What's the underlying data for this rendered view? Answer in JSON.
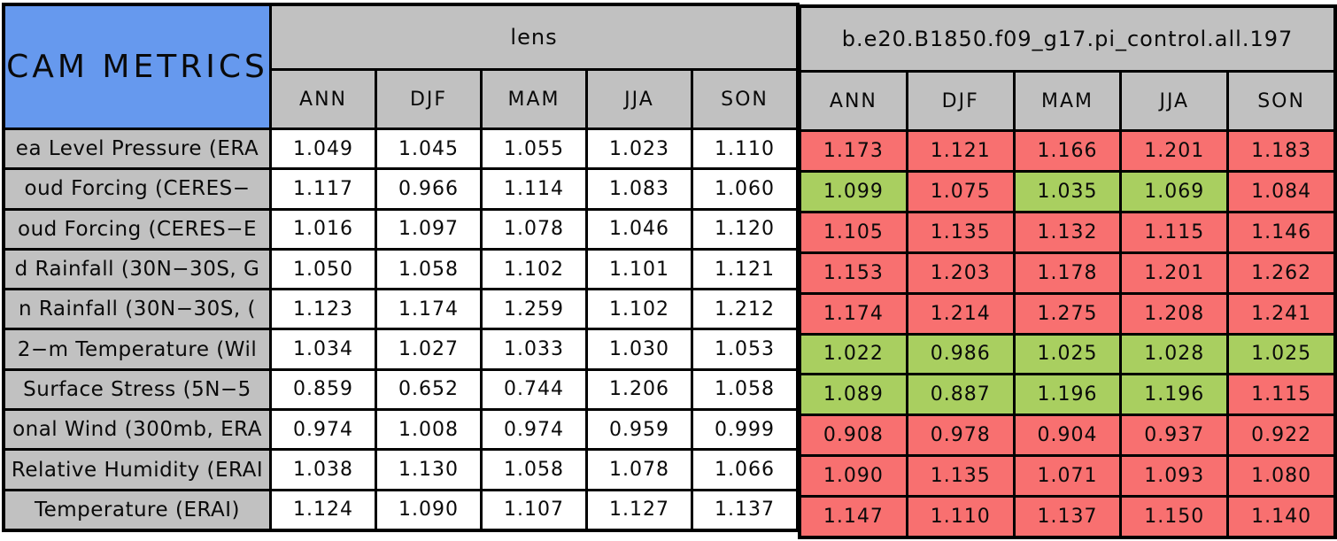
{
  "colors": {
    "title_blue": "#6699ee",
    "header_gray": "#c1c1c1",
    "cell_white": "#ffffff",
    "cell_red": "#f87070",
    "cell_green": "#a9cf60",
    "border_black": "#000000"
  },
  "chart_data": {
    "type": "table",
    "title": "CAM METRICS",
    "column_groups": [
      "lens",
      "b.e20.B1850.f09_g17.pi_control.all.197"
    ],
    "seasons": [
      "ANN",
      "DJF",
      "MAM",
      "JJA",
      "SON"
    ],
    "rows": [
      {
        "label": "ea Level Pressure (ERA",
        "lens_values": [
          "1.049",
          "1.045",
          "1.055",
          "1.023",
          "1.110"
        ],
        "case_values": [
          "1.173",
          "1.121",
          "1.166",
          "1.201",
          "1.183"
        ],
        "case_colors": [
          "red",
          "red",
          "red",
          "red",
          "red"
        ]
      },
      {
        "label": "oud Forcing (CERES−",
        "lens_values": [
          "1.117",
          "0.966",
          "1.114",
          "1.083",
          "1.060"
        ],
        "case_values": [
          "1.099",
          "1.075",
          "1.035",
          "1.069",
          "1.084"
        ],
        "case_colors": [
          "green",
          "red",
          "green",
          "green",
          "red"
        ]
      },
      {
        "label": "oud Forcing (CERES−E",
        "lens_values": [
          "1.016",
          "1.097",
          "1.078",
          "1.046",
          "1.120"
        ],
        "case_values": [
          "1.105",
          "1.135",
          "1.132",
          "1.115",
          "1.146"
        ],
        "case_colors": [
          "red",
          "red",
          "red",
          "red",
          "red"
        ]
      },
      {
        "label": "d Rainfall (30N−30S, G",
        "lens_values": [
          "1.050",
          "1.058",
          "1.102",
          "1.101",
          "1.121"
        ],
        "case_values": [
          "1.153",
          "1.203",
          "1.178",
          "1.201",
          "1.262"
        ],
        "case_colors": [
          "red",
          "red",
          "red",
          "red",
          "red"
        ]
      },
      {
        "label": "n Rainfall (30N−30S, (",
        "lens_values": [
          "1.123",
          "1.174",
          "1.259",
          "1.102",
          "1.212"
        ],
        "case_values": [
          "1.174",
          "1.214",
          "1.275",
          "1.208",
          "1.241"
        ],
        "case_colors": [
          "red",
          "red",
          "red",
          "red",
          "red"
        ]
      },
      {
        "label": "2−m Temperature (Wil",
        "lens_values": [
          "1.034",
          "1.027",
          "1.033",
          "1.030",
          "1.053"
        ],
        "case_values": [
          "1.022",
          "0.986",
          "1.025",
          "1.028",
          "1.025"
        ],
        "case_colors": [
          "green",
          "green",
          "green",
          "green",
          "green"
        ]
      },
      {
        "label": "Surface Stress (5N−5",
        "lens_values": [
          "0.859",
          "0.652",
          "0.744",
          "1.206",
          "1.058"
        ],
        "case_values": [
          "1.089",
          "0.887",
          "1.196",
          "1.196",
          "1.115"
        ],
        "case_colors": [
          "green",
          "green",
          "green",
          "green",
          "red"
        ]
      },
      {
        "label": "onal Wind (300mb, ERA",
        "lens_values": [
          "0.974",
          "1.008",
          "0.974",
          "0.959",
          "0.999"
        ],
        "case_values": [
          "0.908",
          "0.978",
          "0.904",
          "0.937",
          "0.922"
        ],
        "case_colors": [
          "red",
          "red",
          "red",
          "red",
          "red"
        ]
      },
      {
        "label": "Relative Humidity (ERAI",
        "lens_values": [
          "1.038",
          "1.130",
          "1.058",
          "1.078",
          "1.066"
        ],
        "case_values": [
          "1.090",
          "1.135",
          "1.071",
          "1.093",
          "1.080"
        ],
        "case_colors": [
          "red",
          "red",
          "red",
          "red",
          "red"
        ]
      },
      {
        "label": "Temperature (ERAI)",
        "lens_values": [
          "1.124",
          "1.090",
          "1.107",
          "1.127",
          "1.137"
        ],
        "case_values": [
          "1.147",
          "1.110",
          "1.137",
          "1.150",
          "1.140"
        ],
        "case_colors": [
          "red",
          "red",
          "red",
          "red",
          "red"
        ]
      }
    ]
  }
}
